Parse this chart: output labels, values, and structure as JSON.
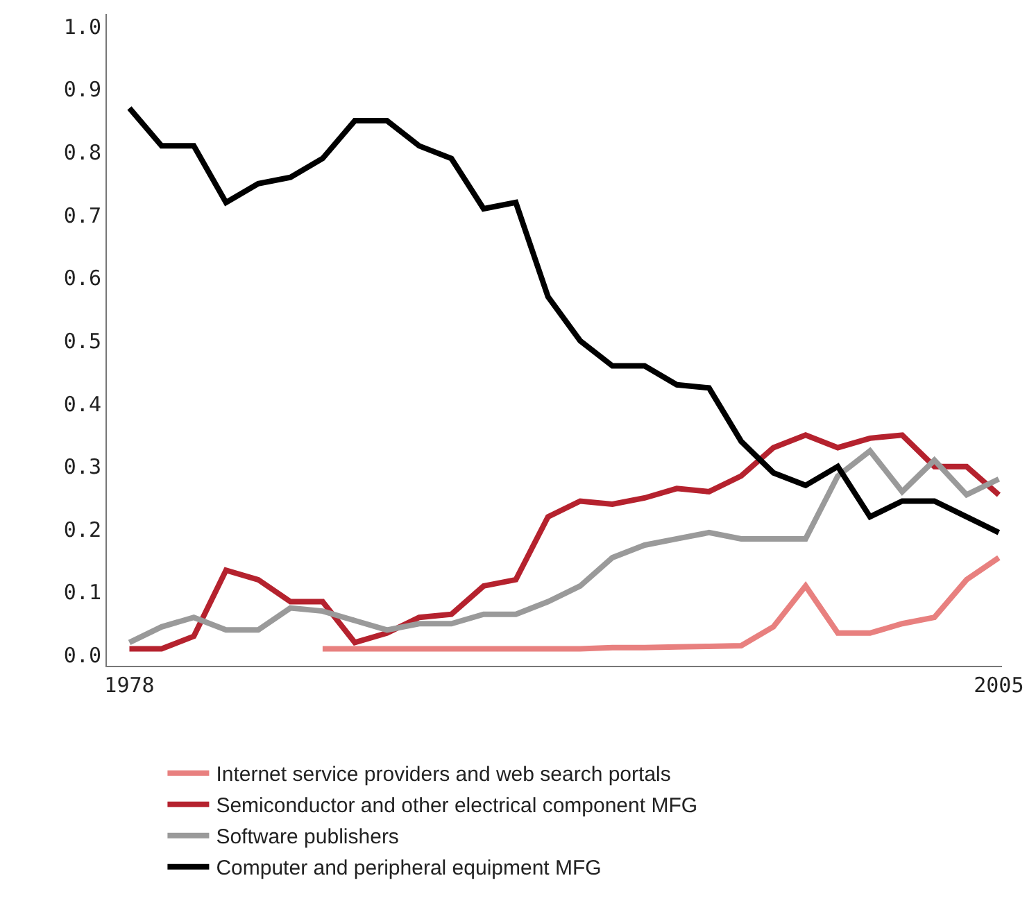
{
  "chart_data": {
    "type": "line",
    "x": [
      1978,
      1979,
      1980,
      1981,
      1982,
      1983,
      1984,
      1985,
      1986,
      1987,
      1988,
      1989,
      1990,
      1991,
      1992,
      1993,
      1994,
      1995,
      1996,
      1997,
      1998,
      1999,
      2000,
      2001,
      2002,
      2003,
      2004,
      2005
    ],
    "series": [
      {
        "name": "Internet service providers and web search portals",
        "color": "#e8807f",
        "values": [
          null,
          null,
          null,
          null,
          null,
          null,
          0.01,
          0.01,
          0.01,
          0.01,
          0.01,
          0.01,
          0.01,
          0.01,
          0.01,
          0.012,
          0.012,
          0.013,
          0.014,
          0.015,
          0.045,
          0.11,
          0.035,
          0.035,
          0.05,
          0.06,
          0.12,
          0.155
        ]
      },
      {
        "name": "Semiconductor and other electrical component MFG",
        "color": "#b5222e",
        "values": [
          0.01,
          0.01,
          0.03,
          0.135,
          0.12,
          0.085,
          0.085,
          0.02,
          0.035,
          0.06,
          0.065,
          0.11,
          0.12,
          0.22,
          0.245,
          0.24,
          0.25,
          0.265,
          0.26,
          0.285,
          0.33,
          0.35,
          0.33,
          0.345,
          0.35,
          0.3,
          0.3,
          0.255
        ]
      },
      {
        "name": "Software publishers",
        "color": "#9a9a9a",
        "values": [
          0.02,
          0.045,
          0.06,
          0.04,
          0.04,
          0.075,
          0.07,
          0.055,
          0.04,
          0.05,
          0.05,
          0.065,
          0.065,
          0.085,
          0.11,
          0.155,
          0.175,
          0.185,
          0.195,
          0.185,
          0.185,
          0.185,
          0.285,
          0.325,
          0.26,
          0.31,
          0.255,
          0.28
        ]
      },
      {
        "name": "Computer and peripheral equipment MFG",
        "color": "#000000",
        "values": [
          0.87,
          0.81,
          0.81,
          0.72,
          0.75,
          0.76,
          0.79,
          0.85,
          0.85,
          0.81,
          0.79,
          0.71,
          0.72,
          0.57,
          0.5,
          0.46,
          0.46,
          0.43,
          0.425,
          0.34,
          0.29,
          0.27,
          0.3,
          0.22,
          0.245,
          0.245,
          0.22,
          0.195
        ]
      }
    ],
    "xlim": [
      1977.3,
      2005.1
    ],
    "xticks": [
      {
        "value": 1978,
        "label": "1978"
      },
      {
        "value": 2005,
        "label": "2005"
      }
    ],
    "ylim": [
      -0.017,
      1.02
    ],
    "yticks": [
      {
        "value": 0,
        "label": "0.0"
      },
      {
        "value": 0.1,
        "label": "0.1"
      },
      {
        "value": 0.2,
        "label": "0.2"
      },
      {
        "value": 0.3,
        "label": "0.3"
      },
      {
        "value": 0.4,
        "label": "0.4"
      },
      {
        "value": 0.5,
        "label": "0.5"
      },
      {
        "value": 0.6,
        "label": "0.6"
      },
      {
        "value": 0.7,
        "label": "0.7"
      },
      {
        "value": 0.8,
        "label": "0.8"
      },
      {
        "value": 0.9,
        "label": "0.9"
      },
      {
        "value": 1,
        "label": "1.0"
      }
    ],
    "legend": "bottom",
    "grid": false,
    "marker": "none",
    "line_style": "solid"
  }
}
